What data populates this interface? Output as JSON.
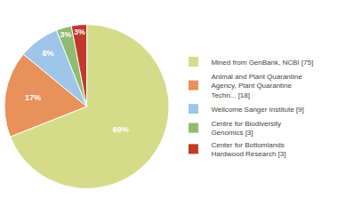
{
  "chart_data": {
    "type": "pie",
    "categories": [
      "Mined from GenBank, NCBI [75]",
      "Animal and Plant Quarantine\nAgency, Plant Quarantine\nTechn... [18]",
      "Wellcome Sanger Institute [9]",
      "Centre for Biodiversity\nGenomics [3]",
      "Center for Bottomlands\nHardwood Research [3]"
    ],
    "values": [
      69,
      17,
      8,
      3,
      3
    ],
    "value_labels": [
      "69%",
      "17%",
      "8%",
      "3%",
      "3%"
    ],
    "colors": [
      "#d4dc8a",
      "#e8915a",
      "#9fc5e8",
      "#8fbc6e",
      "#c0392b"
    ],
    "data_labels": true,
    "legend": "right"
  }
}
